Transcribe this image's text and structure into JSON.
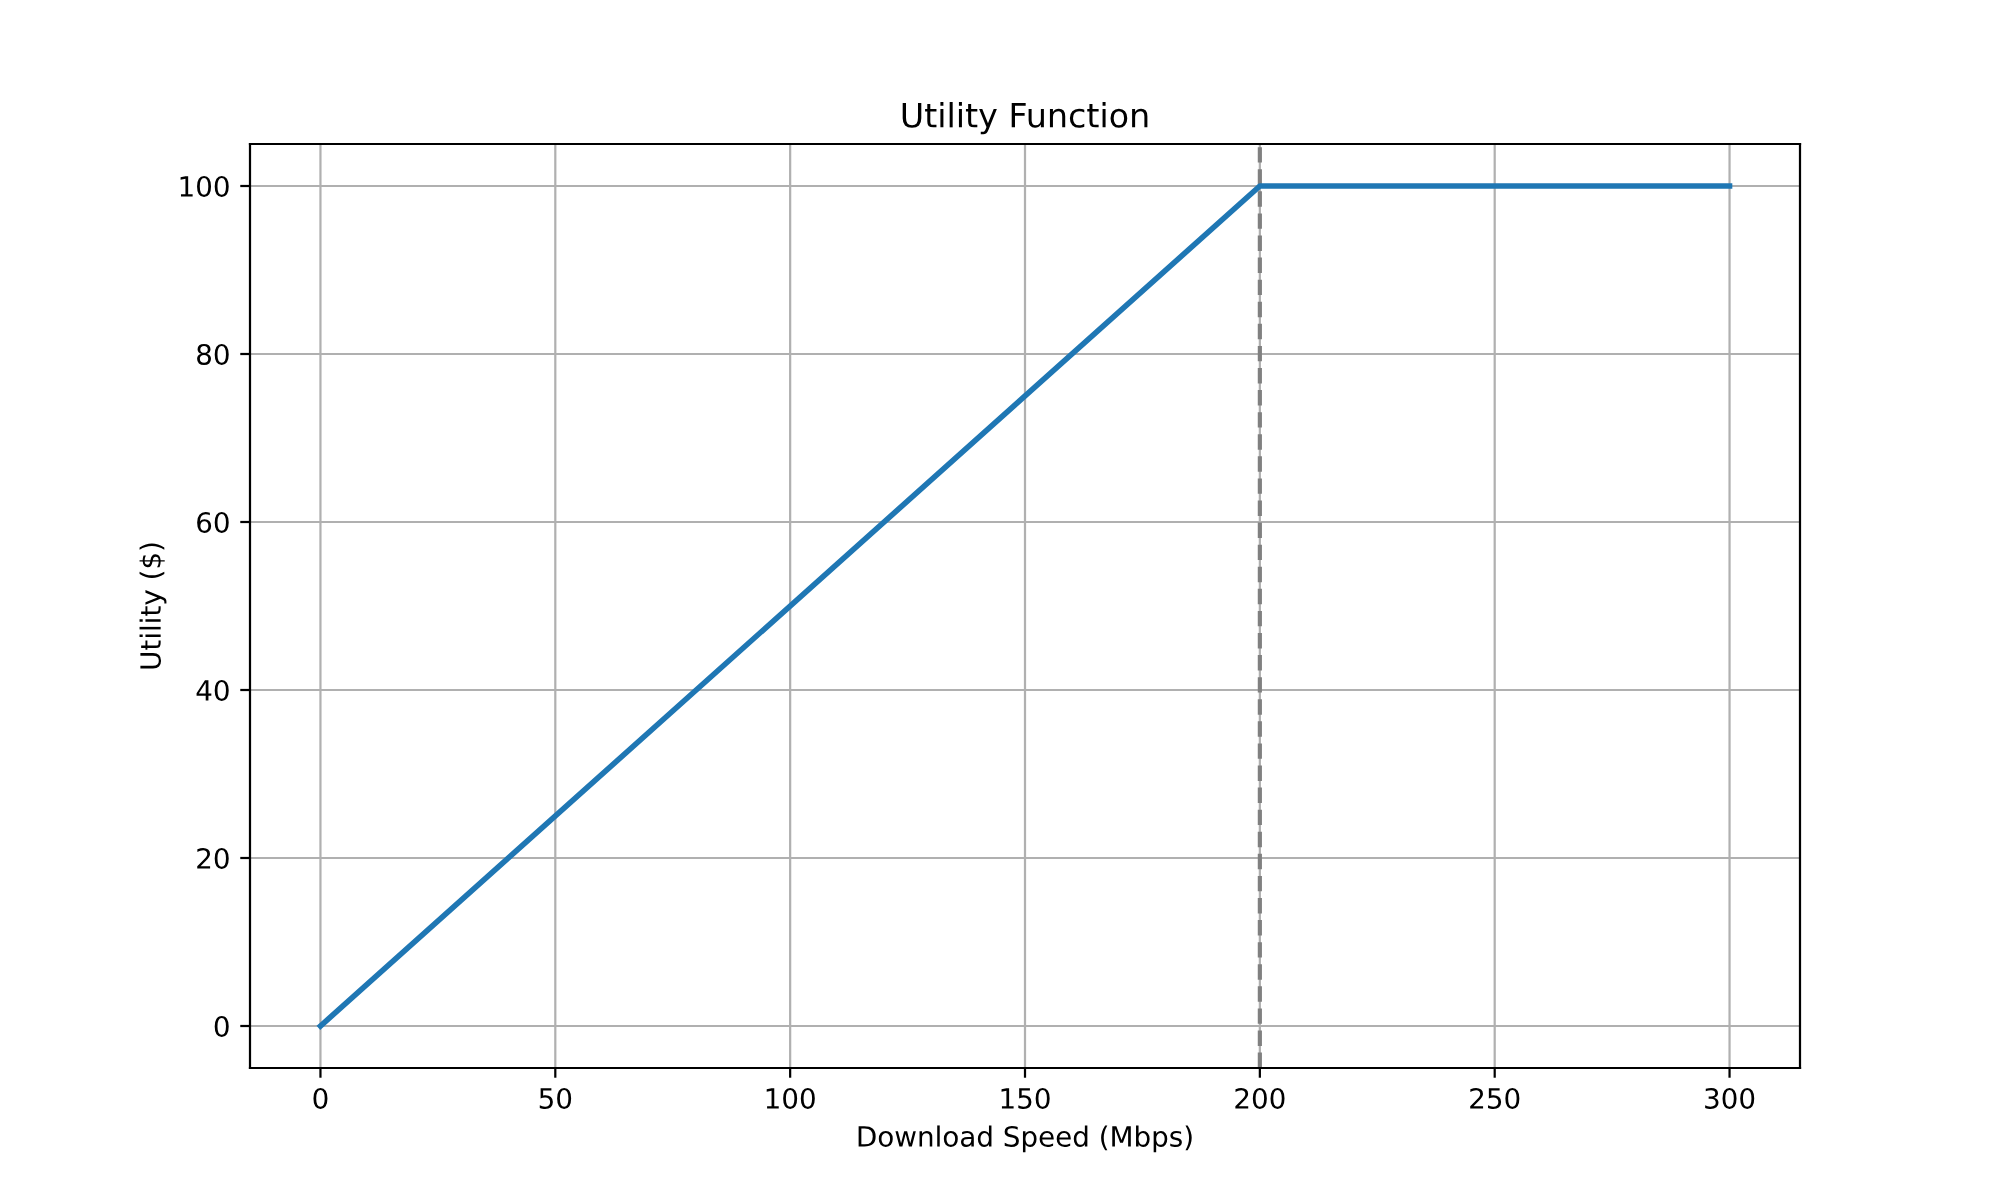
{
  "chart_data": {
    "type": "line",
    "title": "Utility Function",
    "xlabel": "Download Speed (Mbps)",
    "ylabel": "Utility ($)",
    "series": [
      {
        "color": "#1f77b4",
        "x": [
          0,
          200,
          300
        ],
        "values": [
          0,
          100,
          100
        ]
      }
    ],
    "xlim": [
      -15,
      315
    ],
    "ylim": [
      -5,
      105
    ],
    "xticks": [
      0,
      50,
      100,
      150,
      200,
      250,
      300
    ],
    "yticks": [
      0,
      20,
      40,
      60,
      80,
      100
    ],
    "ref_lines": [
      {
        "axis": "x",
        "value": 200,
        "color": "#808080",
        "line_style": "dashed"
      }
    ],
    "grid": true,
    "marker": "none",
    "line_style": "solid"
  }
}
